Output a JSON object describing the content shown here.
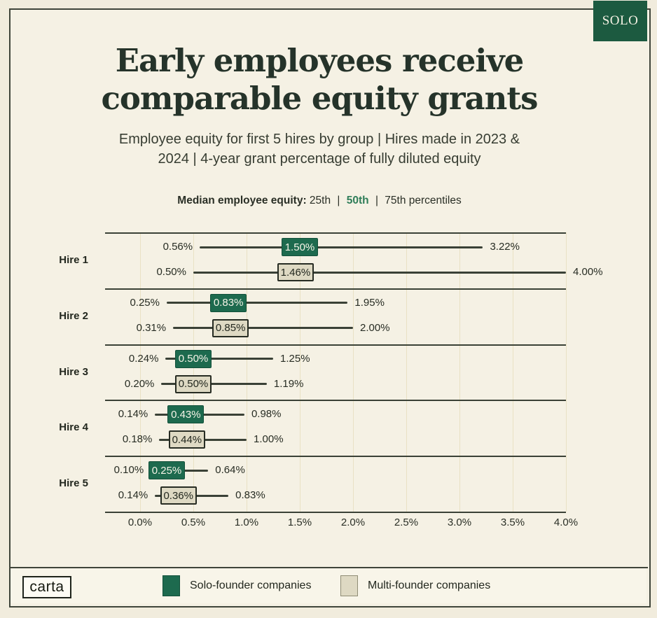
{
  "badge": {
    "label": "SOLO"
  },
  "header": {
    "title_line1": "Early employees receive",
    "title_line2": "comparable equity grants",
    "subtitle_line1": "Employee equity for first 5 hires by group | Hires made in 2023 &",
    "subtitle_line2": "2024 | 4-year grant percentage of fully diluted equity"
  },
  "percentile_key": {
    "bold": "Median employee equity:",
    "p25": "25th",
    "sep": "|",
    "p50": "50th",
    "p75": "75th percentiles"
  },
  "footer": {
    "logo": "carta",
    "legend_solo": "Solo-founder companies",
    "legend_multi": "Multi-founder companies"
  },
  "colors": {
    "cream": "#f1ecdd",
    "card_bg": "#f5f1e4",
    "frame": "#3f453a",
    "ink": "#262b22",
    "ink_green": "#25332a",
    "green": "#1d6a4e",
    "green_dark": "#1c5a40",
    "beige": "#ded9c3",
    "line": "#3a4136",
    "grid": "#e9e1c4",
    "accent_text": "#2e7d58"
  },
  "chart_data": {
    "type": "scatter",
    "variant": "percentile_range_dumbbell",
    "title": "Early employees receive comparable equity grants",
    "subtitle": "Employee equity for first 5 hires by group | Hires made in 2023 & 2024 | 4-year grant percentage of fully diluted equity",
    "xlabel": "4-year grant percentage of fully diluted equity",
    "xlim": [
      0.0,
      4.0
    ],
    "x_ticks": [
      "0.0%",
      "0.5%",
      "1.0%",
      "1.5%",
      "2.0%",
      "2.5%",
      "3.0%",
      "3.5%",
      "4.0%"
    ],
    "grid": "vertical",
    "legend_position": "bottom",
    "categories": [
      "Hire 1",
      "Hire 2",
      "Hire 3",
      "Hire 4",
      "Hire 5"
    ],
    "series": [
      {
        "name": "Solo-founder companies",
        "color": "#1d6a4e",
        "p25": [
          0.56,
          0.25,
          0.24,
          0.14,
          0.1
        ],
        "p50": [
          1.5,
          0.83,
          0.5,
          0.43,
          0.25
        ],
        "p75": [
          3.22,
          1.95,
          1.25,
          0.98,
          0.64
        ]
      },
      {
        "name": "Multi-founder companies",
        "color": "#ded9c3",
        "p25": [
          0.5,
          0.31,
          0.2,
          0.18,
          0.14
        ],
        "p50": [
          1.46,
          0.85,
          0.5,
          0.44,
          0.36
        ],
        "p75": [
          4.0,
          2.0,
          1.19,
          1.0,
          0.83
        ]
      }
    ]
  }
}
